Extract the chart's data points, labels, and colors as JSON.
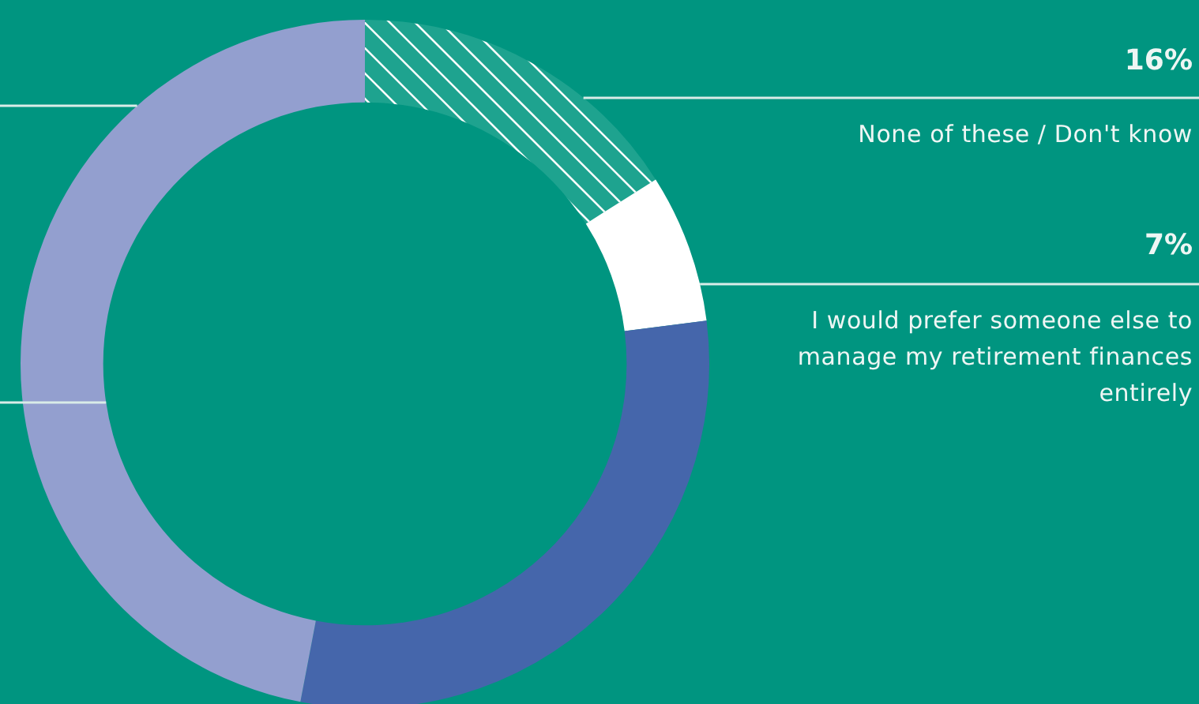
{
  "chart_data": {
    "type": "donut",
    "categories": [
      "None of these / Don't know",
      "I would prefer someone else to manage my retirement finances entirely",
      null,
      null
    ],
    "values": [
      16,
      7,
      30,
      47
    ],
    "value_labels": [
      "16%",
      "7%",
      null,
      null
    ],
    "colors": [
      "#1ea38f",
      "#ffffff",
      "#4566ab",
      "#939fcf"
    ]
  }
}
